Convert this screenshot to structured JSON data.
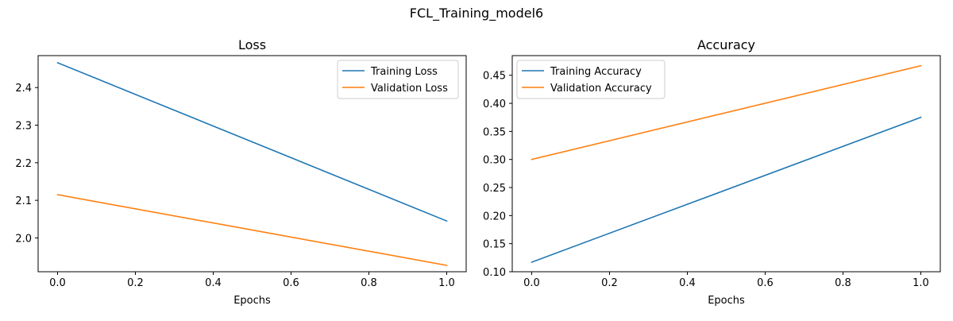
{
  "figure": {
    "title": "FCL_Training_model6"
  },
  "chart_data": [
    {
      "type": "line",
      "title": "Loss",
      "xlabel": "Epochs",
      "ylabel": "",
      "x": [
        0,
        1
      ],
      "xlim": [
        -0.05,
        1.05
      ],
      "ylim": [
        1.91,
        2.485
      ],
      "xticks": [
        0.0,
        0.2,
        0.4,
        0.6,
        0.8,
        1.0
      ],
      "xtick_labels": [
        "0.0",
        "0.2",
        "0.4",
        "0.6",
        "0.8",
        "1.0"
      ],
      "yticks": [
        2.0,
        2.1,
        2.2,
        2.3,
        2.4
      ],
      "ytick_labels": [
        "2.0",
        "2.1",
        "2.2",
        "2.3",
        "2.4"
      ],
      "grid": false,
      "legend_position": "upper-right",
      "series": [
        {
          "name": "Training Loss",
          "color": "#1f77b4",
          "values": [
            2.466,
            2.045
          ]
        },
        {
          "name": "Validation Loss",
          "color": "#ff7f0e",
          "values": [
            2.115,
            1.927
          ]
        }
      ]
    },
    {
      "type": "line",
      "title": "Accuracy",
      "xlabel": "Epochs",
      "ylabel": "",
      "x": [
        0,
        1
      ],
      "xlim": [
        -0.05,
        1.05
      ],
      "ylim": [
        0.1,
        0.485
      ],
      "xticks": [
        0.0,
        0.2,
        0.4,
        0.6,
        0.8,
        1.0
      ],
      "xtick_labels": [
        "0.0",
        "0.2",
        "0.4",
        "0.6",
        "0.8",
        "1.0"
      ],
      "yticks": [
        0.1,
        0.15,
        0.2,
        0.25,
        0.3,
        0.35,
        0.4,
        0.45
      ],
      "ytick_labels": [
        "0.10",
        "0.15",
        "0.20",
        "0.25",
        "0.30",
        "0.35",
        "0.40",
        "0.45"
      ],
      "grid": false,
      "legend_position": "upper-left",
      "series": [
        {
          "name": "Training Accuracy",
          "color": "#1f77b4",
          "values": [
            0.117,
            0.375
          ]
        },
        {
          "name": "Validation Accuracy",
          "color": "#ff7f0e",
          "values": [
            0.3,
            0.467
          ]
        }
      ]
    }
  ]
}
